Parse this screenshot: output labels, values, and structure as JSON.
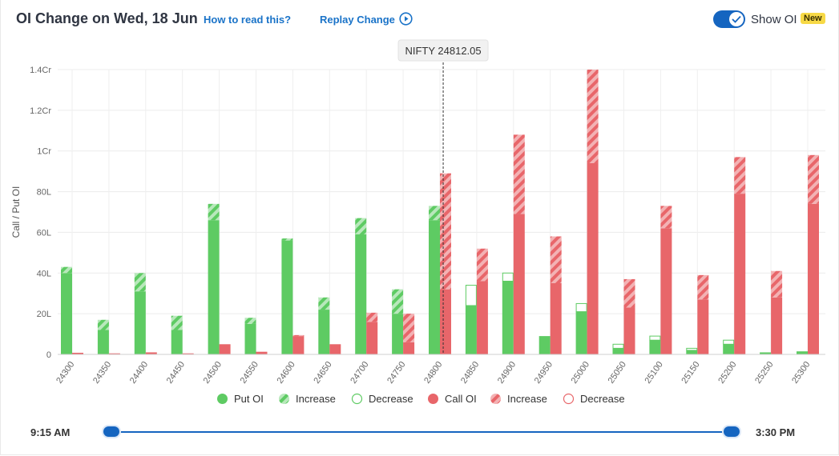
{
  "header": {
    "title": "OI Change on Wed, 18 Jun",
    "how_to_read": "How to read this?",
    "replay": "Replay Change",
    "show_oi": "Show OI",
    "badge": "New"
  },
  "colors": {
    "put": "#5ecb63",
    "put_hatch": "#b8e8bb",
    "call": "#e8666a",
    "call_hatch": "#f3b2b4",
    "link": "#1a73c8",
    "accent": "#1565c0"
  },
  "legend": [
    {
      "label": "Put OI",
      "kind": "put-solid"
    },
    {
      "label": "Increase",
      "kind": "put-hatch"
    },
    {
      "label": "Decrease",
      "kind": "put-outline"
    },
    {
      "label": "Call OI",
      "kind": "call-solid"
    },
    {
      "label": "Increase",
      "kind": "call-hatch"
    },
    {
      "label": "Decrease",
      "kind": "call-outline"
    }
  ],
  "timeline": {
    "start": "9:15 AM",
    "end": "3:30 PM"
  },
  "chart_data": {
    "type": "bar",
    "ylabel": "Call / Put OI",
    "yticks": [
      "0",
      "20L",
      "40L",
      "60L",
      "80L",
      "1Cr",
      "1.2Cr",
      "1.4Cr"
    ],
    "ylim": [
      0,
      140
    ],
    "units": "Lakh",
    "spot_label": "NIFTY 24812.05",
    "spot_value": 24812.05,
    "categories": [
      "24300",
      "24350",
      "24400",
      "24450",
      "24500",
      "24550",
      "24600",
      "24650",
      "24700",
      "24750",
      "24800",
      "24850",
      "24900",
      "24950",
      "25000",
      "25050",
      "25100",
      "25150",
      "25200",
      "25250",
      "25300"
    ],
    "series": [
      {
        "name": "Put OI",
        "base": [
          40,
          12,
          31,
          12,
          66,
          15,
          56,
          22,
          59,
          20,
          66,
          24,
          36,
          9,
          21,
          3,
          7,
          2,
          5,
          1,
          1.5
        ],
        "increase": [
          3,
          5,
          9,
          7,
          8,
          3,
          1,
          6,
          8,
          12,
          7,
          0,
          0,
          0,
          0,
          0,
          0,
          0,
          0,
          0,
          0
        ],
        "decrease": [
          0,
          0,
          0,
          0,
          0,
          0,
          0,
          0,
          0,
          0,
          0,
          10,
          4,
          0,
          4,
          2,
          2,
          1,
          2,
          0,
          0
        ]
      },
      {
        "name": "Call OI",
        "base": [
          0.8,
          0.5,
          1,
          0.5,
          5,
          1.3,
          9,
          5,
          16,
          6,
          32,
          36,
          69,
          35,
          94,
          23,
          62,
          27,
          79,
          28,
          74
        ],
        "increase": [
          0,
          0,
          0,
          0,
          0,
          0,
          0.5,
          0,
          4.5,
          14,
          57,
          16,
          39,
          23,
          46,
          14,
          11,
          12,
          18,
          13,
          24
        ],
        "decrease": [
          0,
          0,
          0,
          0,
          0,
          0,
          0,
          0,
          0,
          0,
          0,
          0,
          0,
          0,
          0,
          0,
          0,
          0,
          0,
          0,
          0
        ]
      }
    ]
  }
}
